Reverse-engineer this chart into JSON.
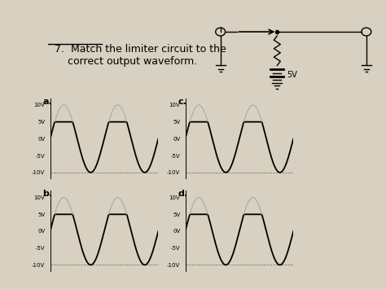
{
  "title_text": "7.  Match the limiter circuit to the\n    correct output waveform.",
  "bg_color": "#d8d0c0",
  "label_a": "a.",
  "label_b": "b.",
  "label_c": "c.",
  "label_d": "d.",
  "yticks": [
    "10V",
    "5V",
    "0V",
    "-5V",
    "-10V"
  ],
  "yvals": [
    10,
    5,
    0,
    -5,
    -10
  ]
}
